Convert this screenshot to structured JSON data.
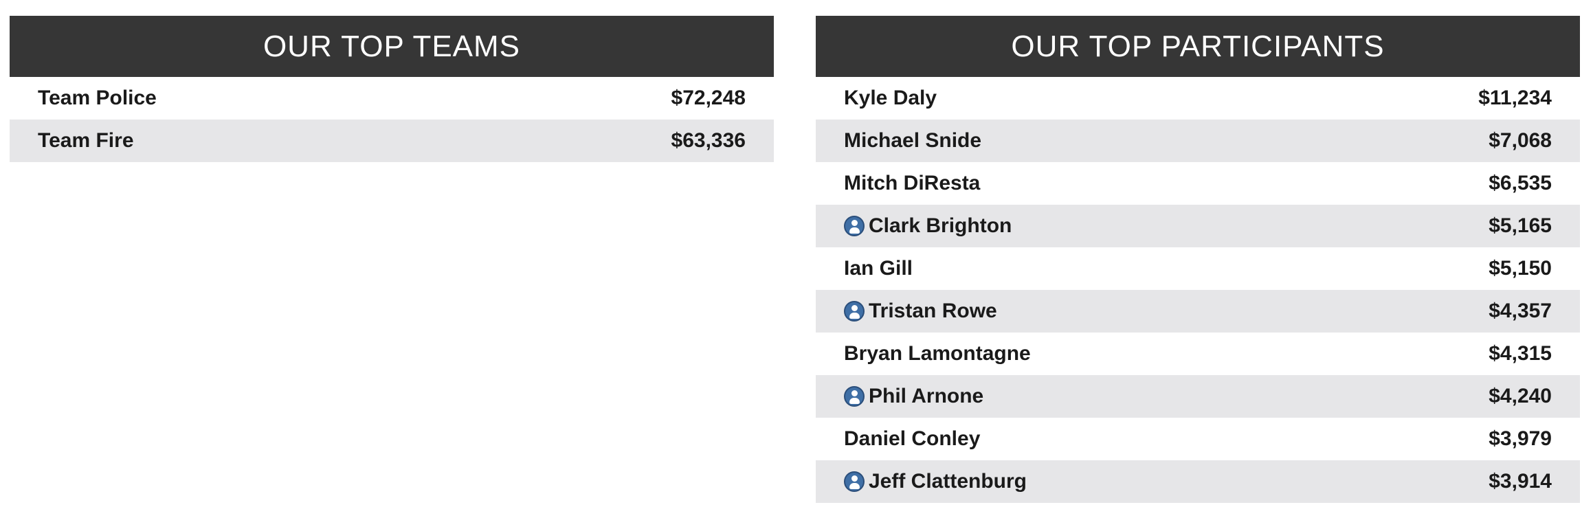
{
  "teams": {
    "title": "OUR TOP TEAMS",
    "rows": [
      {
        "name": "Team Police",
        "amount": "$72,248"
      },
      {
        "name": "Team Fire",
        "amount": "$63,336"
      }
    ]
  },
  "participants": {
    "title": "OUR TOP PARTICIPANTS",
    "rows": [
      {
        "name": "Kyle Daly",
        "amount": "$11,234",
        "icon": null
      },
      {
        "name": "Michael Snide",
        "amount": "$7,068",
        "icon": null
      },
      {
        "name": "Mitch DiResta",
        "amount": "$6,535",
        "icon": null
      },
      {
        "name": "Clark Brighton",
        "amount": "$5,165",
        "icon": "team-captain-icon"
      },
      {
        "name": "Ian Gill",
        "amount": "$5,150",
        "icon": null
      },
      {
        "name": "Tristan Rowe",
        "amount": "$4,357",
        "icon": "team-captain-icon"
      },
      {
        "name": "Bryan Lamontagne",
        "amount": "$4,315",
        "icon": null
      },
      {
        "name": "Phil Arnone",
        "amount": "$4,240",
        "icon": "team-captain-icon"
      },
      {
        "name": "Daniel Conley",
        "amount": "$3,979",
        "icon": null
      },
      {
        "name": "Jeff Clattenburg",
        "amount": "$3,914",
        "icon": "team-captain-icon"
      }
    ]
  },
  "colors": {
    "header_bg": "#363636",
    "row_shade": "#e6e6e8",
    "badge": "#3f6fa6"
  }
}
